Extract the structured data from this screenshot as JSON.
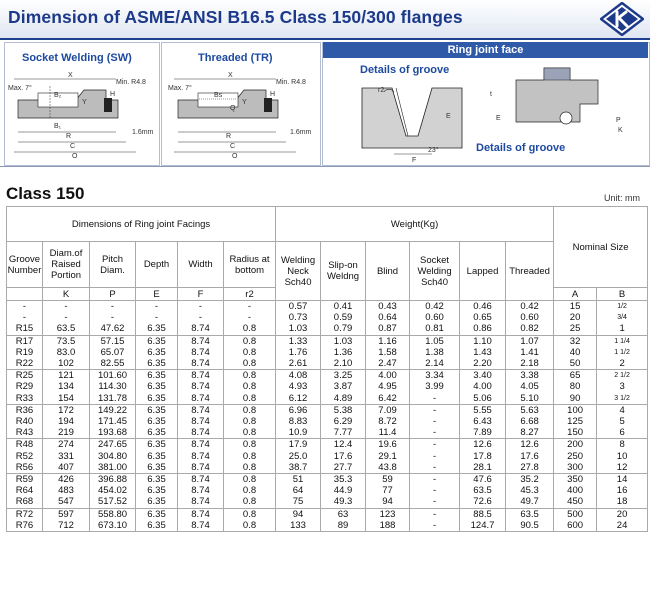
{
  "header": {
    "title": "Dimension of ASME/ANSI B16.5 Class 150/300 flanges"
  },
  "diagrams": {
    "socket_label": "Socket Welding (SW)",
    "threaded_label": "Threaded (TR)",
    "ring_label": "Ring joint face",
    "groove_label_1": "Details of groove",
    "groove_label_2": "Details of groove",
    "sw_dims": {
      "x": "X",
      "b2": "B₂",
      "b1": "B₁",
      "r": "R",
      "c": "C",
      "o": "O",
      "max": "Max. 7°",
      "min": "Min. R4.8",
      "mm": "1.6mm",
      "y": "Y",
      "h": "H"
    },
    "tr_dims": {
      "x": "X",
      "b": "Bs",
      "q": "Q",
      "r": "R",
      "c": "C",
      "o": "O",
      "max": "Max. 7°",
      "min": "Min. R4.8",
      "mm": "1.6mm",
      "y": "Y",
      "h": "H"
    },
    "groove_dims": {
      "r2": "r2",
      "e": "E",
      "f": "F",
      "p": "P",
      "k": "K",
      "angle": "23°",
      "t": "t"
    }
  },
  "section": {
    "class_title": "Class 150",
    "unit": "Unit: mm"
  },
  "table": {
    "group_headers": {
      "facings": "Dimensions of Ring joint Facings",
      "weight": "Weight(Kg)",
      "nominal": "Nominal Size"
    },
    "col_headers": {
      "groove": "Groove Number",
      "diam": "Diam.of Raised Portion",
      "pitch": "Pitch Diam.",
      "depth": "Depth",
      "width": "Width",
      "radius": "Radius at bottom",
      "wn": "Welding Neck Sch40",
      "so": "Slip-on Weldng",
      "blind": "Blind",
      "sw": "Socket Welding Sch40",
      "lapped": "Lapped",
      "threaded": "Threaded"
    },
    "symbols": {
      "k": "K",
      "p": "P",
      "e": "E",
      "f": "F",
      "r2": "r2",
      "a": "A",
      "b": "B"
    },
    "groups": [
      [
        [
          "-",
          "-",
          "-",
          "-",
          "-",
          "-",
          "0.57",
          "0.41",
          "0.43",
          "0.42",
          "0.46",
          "0.42",
          "15",
          "1/2"
        ],
        [
          "-",
          "-",
          "-",
          "-",
          "-",
          "-",
          "0.73",
          "0.59",
          "0.64",
          "0.60",
          "0.65",
          "0.60",
          "20",
          "3/4"
        ],
        [
          "R15",
          "63.5",
          "47.62",
          "6.35",
          "8.74",
          "0.8",
          "1.03",
          "0.79",
          "0.87",
          "0.81",
          "0.86",
          "0.82",
          "25",
          "1"
        ]
      ],
      [
        [
          "R17",
          "73.5",
          "57.15",
          "6.35",
          "8.74",
          "0.8",
          "1.33",
          "1.03",
          "1.16",
          "1.05",
          "1.10",
          "1.07",
          "32",
          "1 1/4"
        ],
        [
          "R19",
          "83.0",
          "65.07",
          "6.35",
          "8.74",
          "0.8",
          "1.76",
          "1.36",
          "1.58",
          "1.38",
          "1.43",
          "1.41",
          "40",
          "1 1/2"
        ],
        [
          "R22",
          "102",
          "82.55",
          "6.35",
          "8.74",
          "0.8",
          "2.61",
          "2.10",
          "2.47",
          "2.14",
          "2.20",
          "2.18",
          "50",
          "2"
        ]
      ],
      [
        [
          "R25",
          "121",
          "101.60",
          "6.35",
          "8.74",
          "0.8",
          "4.08",
          "3.25",
          "4.00",
          "3.34",
          "3.40",
          "3.38",
          "65",
          "2 1/2"
        ],
        [
          "R29",
          "134",
          "114.30",
          "6.35",
          "8.74",
          "0.8",
          "4.93",
          "3.87",
          "4.95",
          "3.99",
          "4.00",
          "4.05",
          "80",
          "3"
        ],
        [
          "R33",
          "154",
          "131.78",
          "6.35",
          "8.74",
          "0.8",
          "6.12",
          "4.89",
          "6.42",
          "-",
          "5.06",
          "5.10",
          "90",
          "3 1/2"
        ]
      ],
      [
        [
          "R36",
          "172",
          "149.22",
          "6.35",
          "8.74",
          "0.8",
          "6.96",
          "5.38",
          "7.09",
          "-",
          "5.55",
          "5.63",
          "100",
          "4"
        ],
        [
          "R40",
          "194",
          "171.45",
          "6.35",
          "8.74",
          "0.8",
          "8.83",
          "6.29",
          "8.72",
          "-",
          "6.43",
          "6.68",
          "125",
          "5"
        ],
        [
          "R43",
          "219",
          "193.68",
          "6.35",
          "8.74",
          "0.8",
          "10.9",
          "7.77",
          "11.4",
          "-",
          "7.89",
          "8.27",
          "150",
          "6"
        ]
      ],
      [
        [
          "R48",
          "274",
          "247.65",
          "6.35",
          "8.74",
          "0.8",
          "17.9",
          "12.4",
          "19.6",
          "-",
          "12.6",
          "12.6",
          "200",
          "8"
        ],
        [
          "R52",
          "331",
          "304.80",
          "6.35",
          "8.74",
          "0.8",
          "25.0",
          "17.6",
          "29.1",
          "-",
          "17.8",
          "17.6",
          "250",
          "10"
        ],
        [
          "R56",
          "407",
          "381.00",
          "6.35",
          "8.74",
          "0.8",
          "38.7",
          "27.7",
          "43.8",
          "-",
          "28.1",
          "27.8",
          "300",
          "12"
        ]
      ],
      [
        [
          "R59",
          "426",
          "396.88",
          "6.35",
          "8.74",
          "0.8",
          "51",
          "35.3",
          "59",
          "-",
          "47.6",
          "35.2",
          "350",
          "14"
        ],
        [
          "R64",
          "483",
          "454.02",
          "6.35",
          "8.74",
          "0.8",
          "64",
          "44.9",
          "77",
          "-",
          "63.5",
          "45.3",
          "400",
          "16"
        ],
        [
          "R68",
          "547",
          "517.52",
          "6.35",
          "8.74",
          "0.8",
          "75",
          "49.3",
          "94",
          "-",
          "72.6",
          "49.7",
          "450",
          "18"
        ]
      ],
      [
        [
          "R72",
          "597",
          "558.80",
          "6.35",
          "8.74",
          "0.8",
          "94",
          "63",
          "123",
          "-",
          "88.5",
          "63.5",
          "500",
          "20"
        ],
        [
          "R76",
          "712",
          "673.10",
          "6.35",
          "8.74",
          "0.8",
          "133",
          "89",
          "188",
          "-",
          "124.7",
          "90.5",
          "600",
          "24"
        ]
      ]
    ]
  }
}
